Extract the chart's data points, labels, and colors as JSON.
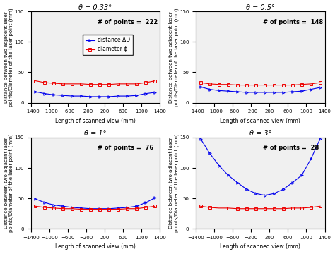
{
  "subplots": [
    {
      "title": "θ = 0.33°",
      "n_points": 222,
      "show_legend": true,
      "x": [
        -1300,
        -1100,
        -900,
        -700,
        -500,
        -300,
        -100,
        100,
        300,
        500,
        700,
        900,
        1100,
        1300
      ],
      "dist": [
        18,
        15,
        13,
        12,
        11,
        11,
        10,
        10,
        10,
        11,
        11,
        12,
        15,
        17
      ],
      "diam": [
        36,
        33,
        32,
        31,
        31,
        31,
        30,
        30,
        30,
        31,
        31,
        31,
        33,
        36
      ]
    },
    {
      "title": "θ = 0.5°",
      "n_points": 148,
      "show_legend": false,
      "x": [
        -1300,
        -1100,
        -900,
        -700,
        -500,
        -300,
        -100,
        100,
        300,
        500,
        700,
        900,
        1100,
        1300
      ],
      "dist": [
        26,
        22,
        20,
        19,
        18,
        17,
        17,
        17,
        17,
        17,
        18,
        19,
        22,
        25
      ],
      "diam": [
        33,
        31,
        30,
        30,
        29,
        29,
        29,
        29,
        29,
        29,
        29,
        30,
        31,
        33
      ]
    },
    {
      "title": "θ = 1°",
      "n_points": 76,
      "show_legend": false,
      "x": [
        -1300,
        -1100,
        -900,
        -700,
        -500,
        -300,
        -100,
        100,
        300,
        500,
        700,
        900,
        1100,
        1300
      ],
      "dist": [
        49,
        43,
        39,
        37,
        35,
        34,
        33,
        33,
        33,
        34,
        35,
        37,
        43,
        51
      ],
      "diam": [
        37,
        35,
        34,
        33,
        33,
        32,
        32,
        32,
        32,
        32,
        33,
        33,
        35,
        37
      ]
    },
    {
      "title": "θ = 3°",
      "n_points": 28,
      "show_legend": false,
      "x": [
        -1300,
        -1100,
        -900,
        -700,
        -500,
        -300,
        -100,
        100,
        300,
        500,
        700,
        900,
        1100,
        1300
      ],
      "dist": [
        148,
        124,
        104,
        88,
        76,
        65,
        58,
        55,
        58,
        65,
        76,
        88,
        115,
        148
      ],
      "diam": [
        37,
        35,
        34,
        34,
        33,
        33,
        33,
        33,
        33,
        33,
        34,
        34,
        35,
        37
      ]
    }
  ],
  "xlim": [
    -1400,
    1400
  ],
  "ylim": [
    0,
    150
  ],
  "yticks": [
    0,
    50,
    100,
    150
  ],
  "xticks": [
    -1400,
    -1000,
    -600,
    -200,
    200,
    600,
    1000,
    1400
  ],
  "xlabel": "Length of scanned view (mm)",
  "ylabel": "Distance between two adjacent laser\npoints/Diameter of the laser point (mm)",
  "blue_color": "#0000EE",
  "red_color": "#EE0000",
  "legend_dist": "distance ΔD",
  "legend_diam": "diameter ϕ",
  "bg_color": "#f0f0f0"
}
